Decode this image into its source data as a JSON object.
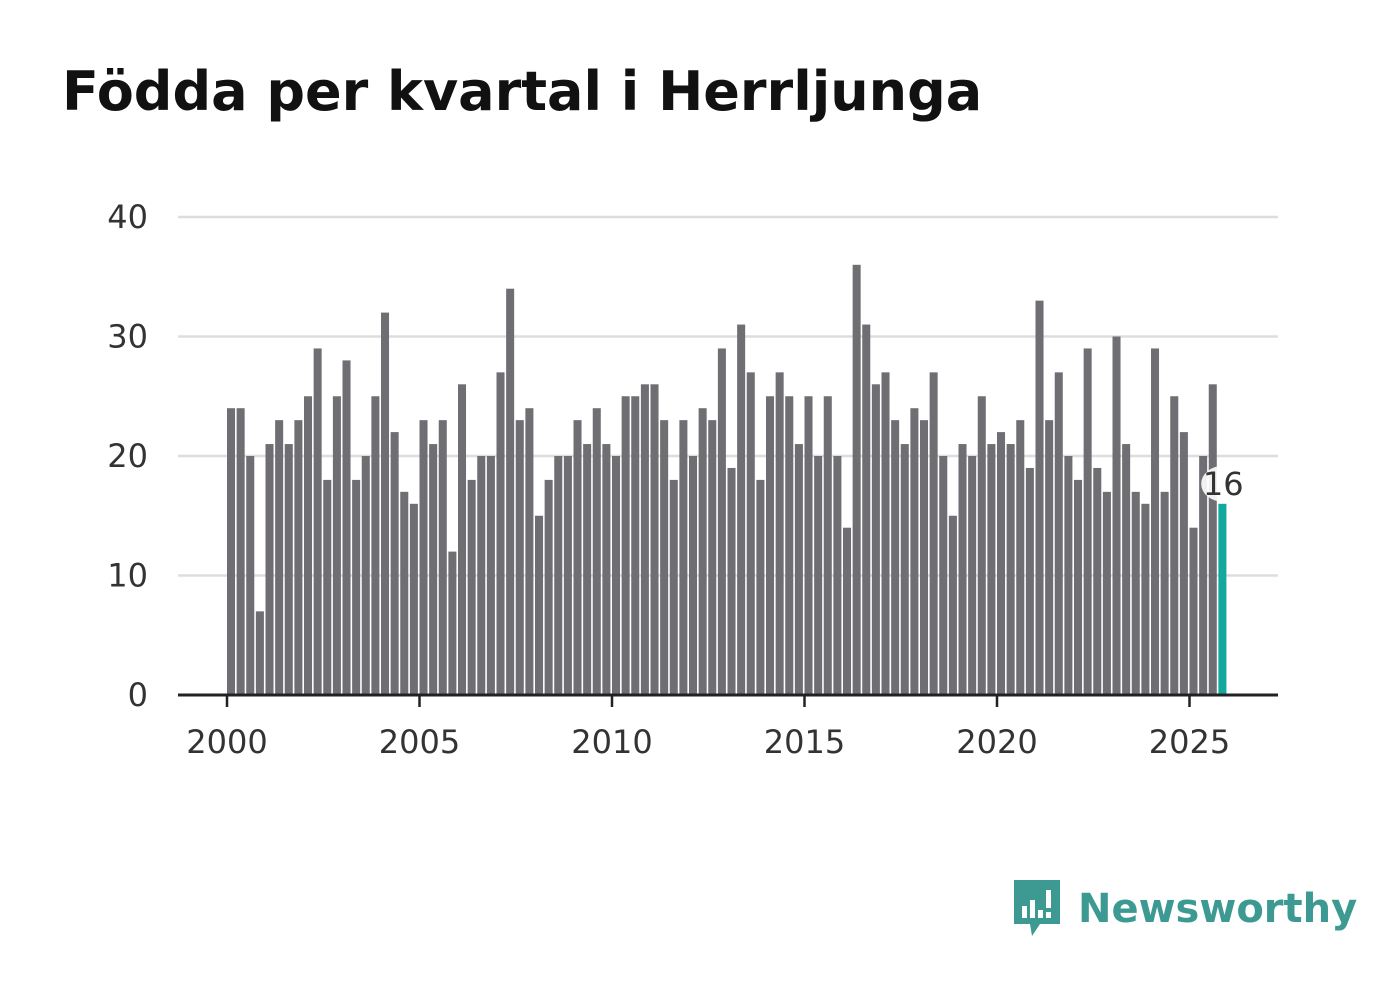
{
  "title": "Födda per kvartal i Herrljunga",
  "brand": {
    "name": "Newsworthy",
    "color": "#3d9a93"
  },
  "colors": {
    "bar": "#6f6f73",
    "highlight": "#13a89e",
    "grid": "#dddddd",
    "axis": "#222222"
  },
  "chart_data": {
    "type": "bar",
    "title": "Födda per kvartal i Herrljunga",
    "xlabel": "",
    "ylabel": "",
    "ylim": [
      0,
      40
    ],
    "yticks": [
      "0",
      "10",
      "20",
      "30",
      "40"
    ],
    "xticks": [
      "2000",
      "2005",
      "2010",
      "2015",
      "2020",
      "2025"
    ],
    "x_start": 2000,
    "quarters_per_year": 4,
    "values": [
      24,
      24,
      20,
      7,
      21,
      23,
      21,
      23,
      25,
      29,
      18,
      25,
      28,
      18,
      20,
      25,
      32,
      22,
      17,
      16,
      23,
      21,
      23,
      12,
      26,
      18,
      20,
      20,
      27,
      34,
      23,
      24,
      15,
      18,
      20,
      20,
      23,
      21,
      24,
      21,
      20,
      25,
      25,
      26,
      26,
      23,
      18,
      23,
      20,
      24,
      23,
      29,
      19,
      31,
      27,
      18,
      25,
      27,
      25,
      21,
      25,
      20,
      25,
      20,
      14,
      36,
      31,
      26,
      27,
      23,
      21,
      24,
      23,
      27,
      20,
      15,
      21,
      20,
      25,
      21,
      22,
      21,
      23,
      19,
      33,
      23,
      27,
      20,
      18,
      29,
      19,
      17,
      30,
      21,
      17,
      16,
      29,
      17,
      25,
      22,
      14,
      20,
      26,
      16
    ],
    "highlight_label": "16"
  }
}
